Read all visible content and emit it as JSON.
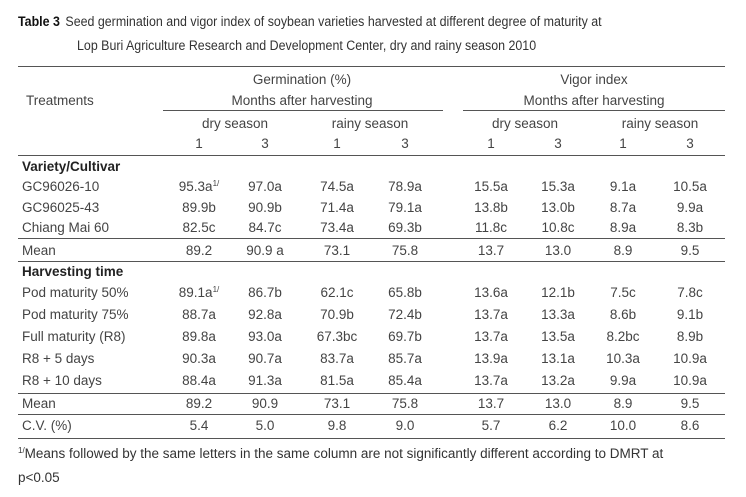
{
  "caption": {
    "label": "Table 3",
    "line1": "Seed germination and vigor index of soybean varieties harvested at different degree of maturity at",
    "line2": "Lop Buri Agriculture Research and Development Center, dry and rainy season 2010"
  },
  "header": {
    "treatments": "Treatments",
    "germination": "Germination (%)",
    "vigor": "Vigor index",
    "months": "Months after harvesting",
    "dry": "dry season",
    "rainy": "rainy season",
    "m1": "1",
    "m3": "3"
  },
  "sections": [
    {
      "title": "Variety/Cultivar",
      "rows": [
        {
          "label": "GC96026-10",
          "values": [
            "95.3a",
            "97.0a",
            "74.5a",
            "78.9a",
            "15.5a",
            "15.3a",
            "9.1a",
            "10.5a"
          ],
          "sup": "1/"
        },
        {
          "label": "GC96025-43",
          "values": [
            "89.9b",
            "90.9b",
            "71.4a",
            "79.1a",
            "13.8b",
            "13.0b",
            "8.7a",
            "9.9a"
          ]
        },
        {
          "label": "Chiang Mai 60",
          "values": [
            "82.5c",
            "84.7c",
            "73.4a",
            "69.3b",
            "11.8c",
            "10.8c",
            "8.9a",
            "8.3b"
          ]
        }
      ],
      "mean": {
        "label": "Mean",
        "values": [
          "89.2",
          "90.9 a",
          "73.1",
          "75.8",
          "13.7",
          "13.0",
          "8.9",
          "9.5"
        ]
      }
    },
    {
      "title": "Harvesting time",
      "rows": [
        {
          "label": "Pod maturity 50%",
          "values": [
            "89.1a",
            "86.7b",
            "62.1c",
            "65.8b",
            "13.6a",
            "12.1b",
            "7.5c",
            "7.8c"
          ],
          "sup": "1/"
        },
        {
          "label": "Pod maturity 75%",
          "values": [
            "88.7a",
            "92.8a",
            "70.9b",
            "72.4b",
            "13.7a",
            "13.3a",
            "8.6b",
            "9.1b"
          ]
        },
        {
          "label": "Full maturity (R8)",
          "values": [
            "89.8a",
            "93.0a",
            "67.3bc",
            "69.7b",
            "13.7a",
            "13.5a",
            "8.2bc",
            "8.9b"
          ]
        },
        {
          "label": "R8 + 5 days",
          "values": [
            "90.3a",
            "90.7a",
            "83.7a",
            "85.7a",
            "13.9a",
            "13.1a",
            "10.3a",
            "10.9a"
          ]
        },
        {
          "label": "R8 + 10 days",
          "values": [
            "88.4a",
            "91.3a",
            "81.5a",
            "85.4a",
            "13.7a",
            "13.2a",
            "9.9a",
            "10.9a"
          ]
        }
      ],
      "mean": {
        "label": "Mean",
        "values": [
          "89.2",
          "90.9",
          "73.1",
          "75.8",
          "13.7",
          "13.0",
          "8.9",
          "9.5"
        ]
      },
      "cv": {
        "label": "C.V. (%)",
        "values": [
          "5.4",
          "5.0",
          "9.8",
          "9.0",
          "5.7",
          "6.2",
          "10.0",
          "8.6"
        ]
      }
    }
  ],
  "footnote": {
    "sup": "1/",
    "line1": "Means followed by the same letters in the same column are not significantly different according to DMRT at",
    "line2": "p<0.05"
  }
}
